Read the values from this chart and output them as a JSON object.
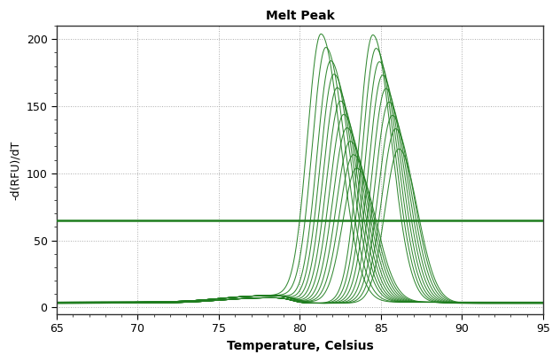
{
  "title": "Melt Peak",
  "xlabel": "Temperature, Celsius",
  "ylabel": "-d(RFU)/dT",
  "xlim": [
    65,
    95
  ],
  "ylim": [
    -5,
    210
  ],
  "yticks": [
    0,
    50,
    100,
    150,
    200
  ],
  "xticks": [
    65,
    70,
    75,
    80,
    85,
    90,
    95
  ],
  "threshold_y": 65,
  "line_color": "#1e7d1e",
  "threshold_color": "#1e7d1e",
  "bg_color": "#ffffff",
  "figsize": [
    6.32,
    4.09
  ],
  "dpi": 100,
  "group1_peaks": [
    81.3,
    81.6,
    81.9,
    82.1,
    82.3,
    82.5,
    82.7,
    82.9,
    83.1,
    83.3,
    83.5
  ],
  "group1_heights": [
    200,
    190,
    180,
    170,
    160,
    150,
    140,
    130,
    120,
    110,
    100
  ],
  "group2_peaks": [
    84.5,
    84.7,
    84.9,
    85.1,
    85.3,
    85.5,
    85.7,
    85.9,
    86.1
  ],
  "group2_heights": [
    200,
    190,
    180,
    170,
    160,
    150,
    140,
    130,
    115
  ]
}
